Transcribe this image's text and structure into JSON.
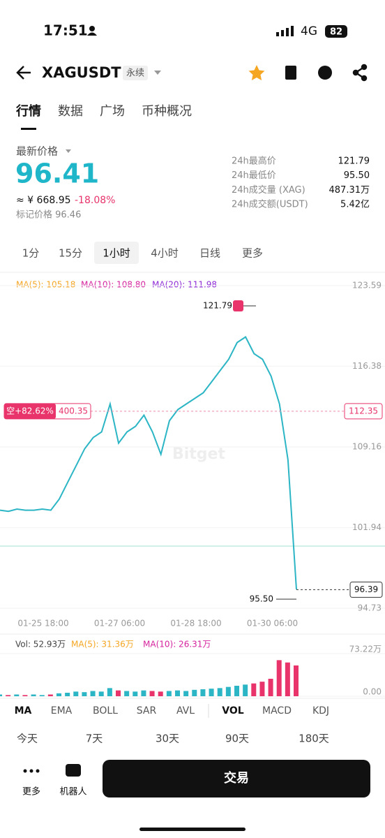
{
  "status_bar": {
    "time": "17:51",
    "network": "4G",
    "battery": "82"
  },
  "header": {
    "symbol": "XAGUSDT",
    "badge": "永续"
  },
  "tabs": [
    "行情",
    "数据",
    "广场",
    "币种概况"
  ],
  "price": {
    "label": "最新价格",
    "last": "96.41",
    "cny": "≈ ¥ 668.95",
    "change": "-18.08%",
    "mark_label": "标记价格 96.46"
  },
  "stats": [
    {
      "label": "24h最高价",
      "value": "121.79"
    },
    {
      "label": "24h最低价",
      "value": "95.50"
    },
    {
      "label": "24h成交量 (XAG)",
      "value": "487.31万"
    },
    {
      "label": "24h成交额(USDT)",
      "value": "5.42亿"
    }
  ],
  "intervals": [
    "1分",
    "15分",
    "1小时",
    "4小时",
    "日线",
    "更多"
  ],
  "chart_data": [
    {
      "type": "line",
      "ma_labels": [
        "MA(5): 105.18",
        "MA(10): 108.80",
        "MA(20): 111.98"
      ],
      "values": [
        103.5,
        103.4,
        103.6,
        103.5,
        103.5,
        103.6,
        103.5,
        104.5,
        106,
        107.5,
        109,
        110,
        110.5,
        113,
        109.5,
        110.5,
        111,
        112,
        110.5,
        108.5,
        111.5,
        112.5,
        113,
        113.5,
        114,
        115,
        116,
        117,
        118.5,
        119,
        117.5,
        117,
        115.5,
        113,
        108,
        96.41
      ],
      "color": "#2bb5c5",
      "ylim": [
        94.73,
        123.59
      ],
      "yticks": [
        123.59,
        116.38,
        109.16,
        101.94,
        94.73
      ],
      "x_labels": [
        "01-25 18:00",
        "01-27 06:00",
        "01-28 18:00",
        "01-30 06:00"
      ],
      "high_label": "121.79",
      "low_label": "95.50",
      "position_tag": "空+82.62%",
      "position_value": "400.35",
      "position_price": 112.35,
      "current_price": 96.39,
      "watermark": "Bitget"
    },
    {
      "type": "bar",
      "title": "Vol: 52.93万",
      "ma_labels": [
        "MA(5): 31.36万",
        "MA(10): 26.31万"
      ],
      "values": [
        3,
        2,
        3,
        2,
        3,
        2,
        3,
        5,
        6,
        8,
        7,
        9,
        8,
        14,
        10,
        9,
        8,
        10,
        9,
        8,
        9,
        10,
        9,
        11,
        12,
        13,
        14,
        16,
        18,
        20,
        22,
        25,
        30,
        62,
        58,
        52.93
      ],
      "ylim": [
        0,
        73.22
      ],
      "yticks": [
        {
          "value": 73.22,
          "label": "73.22万"
        },
        {
          "value": 0,
          "label": "0.00"
        }
      ]
    }
  ],
  "indicators": [
    "MA",
    "EMA",
    "BOLL",
    "SAR",
    "AVL",
    "VOL",
    "MACD",
    "KDJ"
  ],
  "periods": [
    "今天",
    "7天",
    "30天",
    "90天",
    "180天"
  ],
  "bottom": {
    "more": "更多",
    "robot": "机器人",
    "trade": "交易"
  }
}
